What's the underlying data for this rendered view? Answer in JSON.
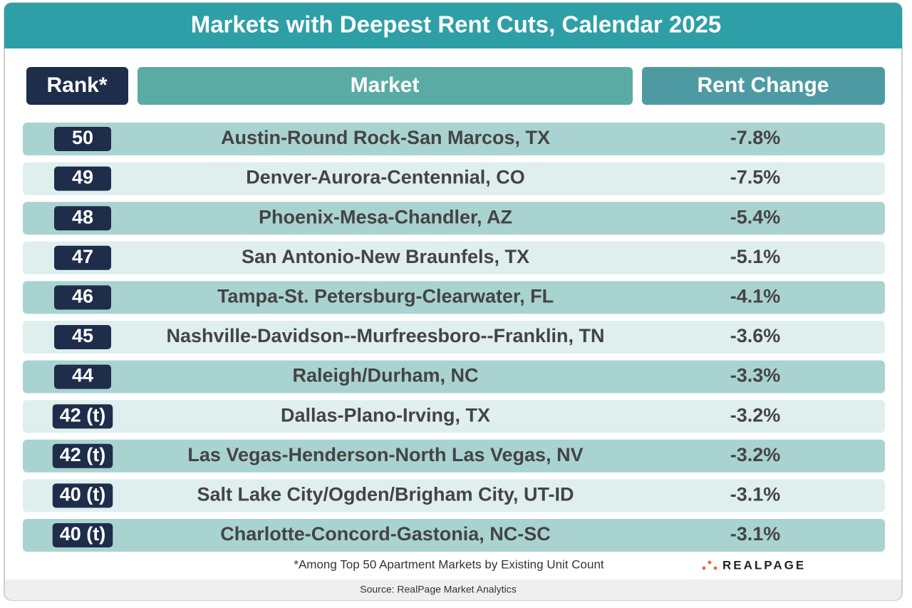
{
  "header": {
    "title": "Markets with Deepest Rent Cuts, Calendar 2025"
  },
  "table": {
    "headers": [
      "Rank*",
      "Market",
      "Rent Change"
    ],
    "rows": [
      [
        "50",
        "Austin-Round Rock-San Marcos, TX",
        "-7.8%"
      ],
      [
        "49",
        "Denver-Aurora-Centennial, CO",
        "-7.5%"
      ],
      [
        "48",
        "Phoenix-Mesa-Chandler, AZ",
        "-5.4%"
      ],
      [
        "47",
        "San Antonio-New Braunfels, TX",
        "-5.1%"
      ],
      [
        "46",
        "Tampa-St. Petersburg-Clearwater, FL",
        "-4.1%"
      ],
      [
        "45",
        "Nashville-Davidson--Murfreesboro--Franklin, TN",
        "-3.6%"
      ],
      [
        "44",
        "Raleigh/Durham, NC",
        "-3.3%"
      ],
      [
        "42 (t)",
        "Dallas-Plano-Irving, TX",
        "-3.2%"
      ],
      [
        "42 (t)",
        "Las Vegas-Henderson-North Las Vegas, NV",
        "-3.2%"
      ],
      [
        "40 (t)",
        "Salt Lake City/Ogden/Brigham City, UT-ID",
        "-3.1%"
      ],
      [
        "40 (t)",
        "Charlotte-Concord-Gastonia, NC-SC",
        "-3.1%"
      ]
    ]
  },
  "footnote": "*Among Top 50 Apartment Markets by Existing Unit Count",
  "logo": "REALPAGE",
  "source": "Source: RealPage Market Analytics"
}
